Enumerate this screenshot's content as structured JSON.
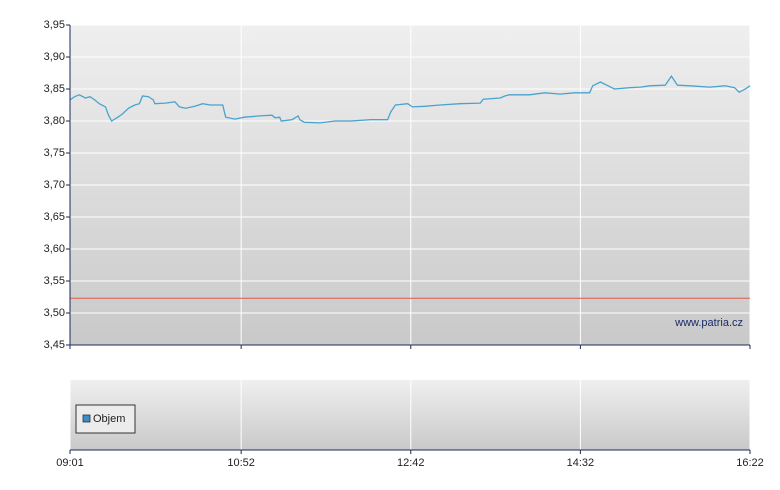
{
  "chart_data": [
    {
      "type": "line",
      "x": [
        "09:01",
        "09:04",
        "09:07",
        "09:11",
        "09:14",
        "09:17",
        "09:20",
        "09:24",
        "09:26",
        "09:28",
        "09:32",
        "09:35",
        "09:39",
        "09:43",
        "09:46",
        "09:48",
        "09:52",
        "09:55",
        "09:56",
        "10:03",
        "10:09",
        "10:12",
        "10:16",
        "10:22",
        "10:27",
        "10:32",
        "10:40",
        "10:42",
        "10:48",
        "10:54",
        "11:04",
        "11:12",
        "11:14",
        "11:17",
        "11:18",
        "11:25",
        "11:29",
        "11:30",
        "11:33",
        "11:43",
        "11:53",
        "12:03",
        "12:16",
        "12:27",
        "12:29",
        "12:32",
        "12:40",
        "12:43",
        "12:51",
        "13:01",
        "13:14",
        "13:27",
        "13:29",
        "13:40",
        "13:43",
        "13:46",
        "13:59",
        "14:09",
        "14:19",
        "14:28",
        "14:38",
        "14:40",
        "14:45",
        "14:50",
        "14:54",
        "15:04",
        "15:11",
        "15:17",
        "15:27",
        "15:31",
        "15:35",
        "15:43",
        "15:56",
        "16:06",
        "16:12",
        "16:15",
        "16:19",
        "16:22"
      ],
      "values": [
        3.833,
        3.838,
        3.841,
        3.836,
        3.838,
        3.833,
        3.827,
        3.822,
        3.809,
        3.8,
        3.806,
        3.811,
        3.82,
        3.825,
        3.827,
        3.839,
        3.838,
        3.833,
        3.827,
        3.828,
        3.83,
        3.822,
        3.82,
        3.823,
        3.827,
        3.825,
        3.825,
        3.806,
        3.803,
        3.806,
        3.808,
        3.809,
        3.805,
        3.806,
        3.8,
        3.802,
        3.808,
        3.802,
        3.798,
        3.797,
        3.8,
        3.8,
        3.802,
        3.802,
        3.814,
        3.825,
        3.827,
        3.822,
        3.823,
        3.825,
        3.827,
        3.828,
        3.834,
        3.836,
        3.839,
        3.841,
        3.841,
        3.844,
        3.842,
        3.844,
        3.844,
        3.855,
        3.861,
        3.855,
        3.85,
        3.852,
        3.853,
        3.855,
        3.856,
        3.87,
        3.856,
        3.855,
        3.853,
        3.855,
        3.852,
        3.845,
        3.85,
        3.855
      ],
      "color": "#4aa3cf",
      "xlim": [
        "09:01",
        "16:22"
      ],
      "xticks": [
        "09:01",
        "10:52",
        "12:42",
        "14:32",
        "16:22"
      ],
      "ylim": [
        3.45,
        3.95
      ],
      "yticks": [
        {
          "value": 3.45,
          "label": "3,45"
        },
        {
          "value": 3.5,
          "label": "3,50"
        },
        {
          "value": 3.55,
          "label": "3,55"
        },
        {
          "value": 3.6,
          "label": "3,60"
        },
        {
          "value": 3.65,
          "label": "3,65"
        },
        {
          "value": 3.7,
          "label": "3,70"
        },
        {
          "value": 3.75,
          "label": "3,75"
        },
        {
          "value": 3.8,
          "label": "3,80"
        },
        {
          "value": 3.85,
          "label": "3,85"
        },
        {
          "value": 3.9,
          "label": "3,90"
        },
        {
          "value": 3.95,
          "label": "3,95"
        }
      ],
      "reference_line": {
        "value": 3.523,
        "color": "#e05a4a"
      },
      "annotation": "www.patria.cz",
      "grid": true
    },
    {
      "type": "bar",
      "series": [
        {
          "name": "Objem",
          "color": "#3c8ec8",
          "values": []
        }
      ],
      "xlim": [
        "09:01",
        "16:22"
      ],
      "xticks": [
        "09:01",
        "10:52",
        "12:42",
        "14:32",
        "16:22"
      ],
      "legend": "left",
      "grid": true
    }
  ]
}
